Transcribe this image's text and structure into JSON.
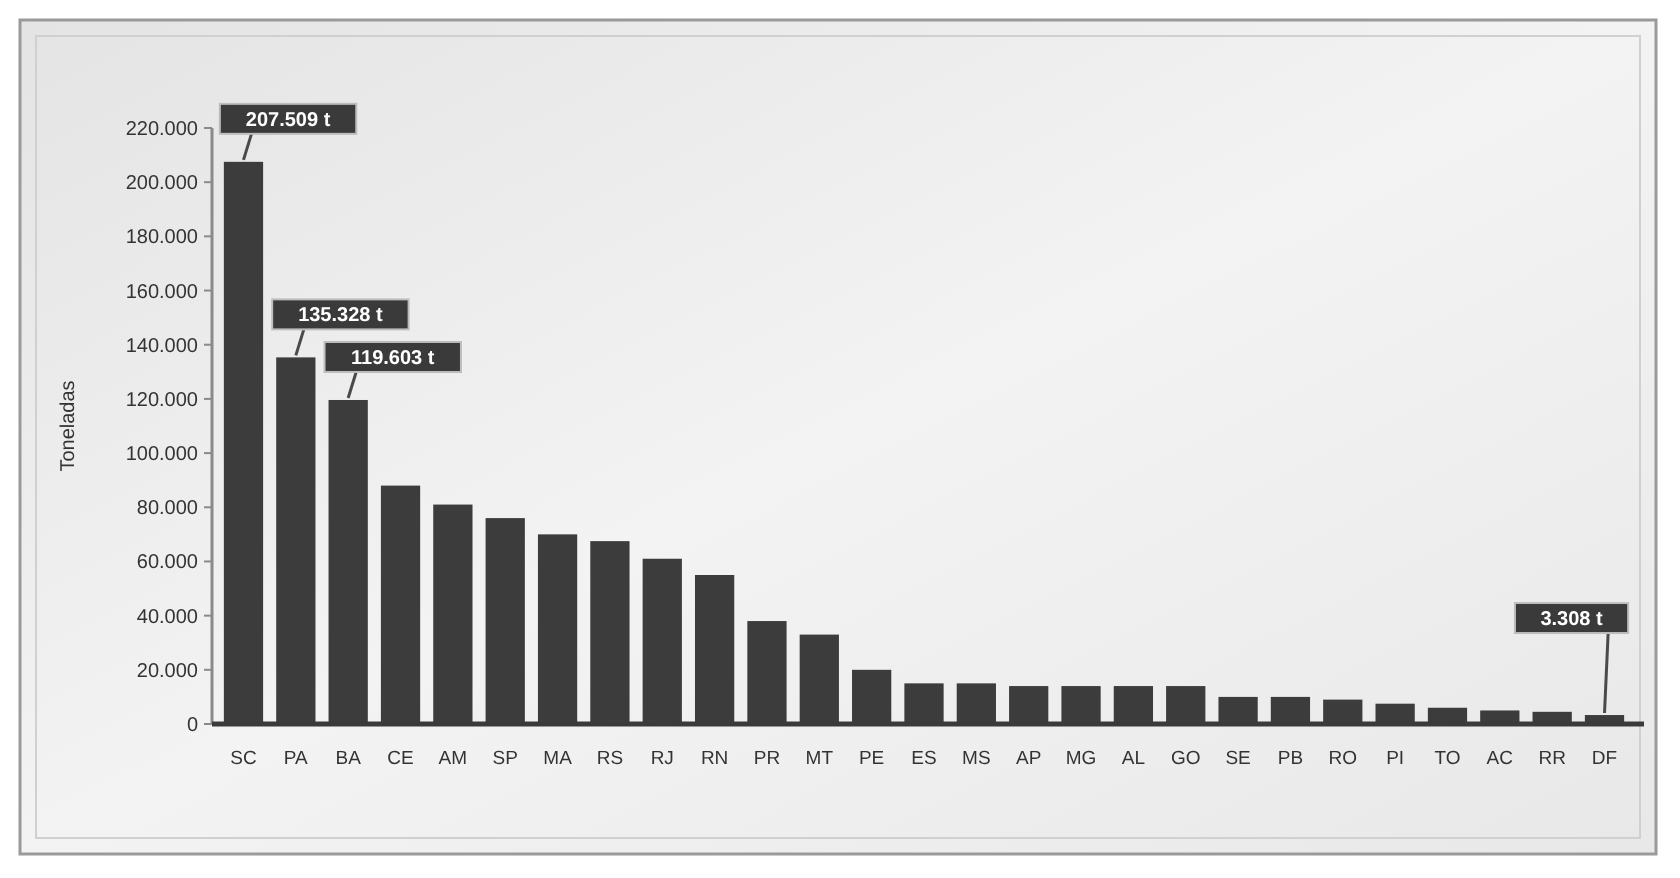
{
  "chart_data": {
    "type": "bar",
    "ylabel": "Toneladas",
    "categories": [
      "SC",
      "PA",
      "BA",
      "CE",
      "AM",
      "SP",
      "MA",
      "RS",
      "RJ",
      "RN",
      "PR",
      "MT",
      "PE",
      "ES",
      "MS",
      "AP",
      "MG",
      "AL",
      "GO",
      "SE",
      "PB",
      "RO",
      "PI",
      "TO",
      "AC",
      "RR",
      "DF"
    ],
    "values": [
      207509,
      135328,
      119603,
      88000,
      81000,
      76000,
      70000,
      67500,
      61000,
      55000,
      38000,
      33000,
      20000,
      15000,
      15000,
      14000,
      14000,
      14000,
      14000,
      10000,
      10000,
      9000,
      7500,
      6000,
      5000,
      4500,
      3308
    ],
    "value_labels": [
      "207.509 t",
      "135.328 t",
      "119.603 t",
      null,
      null,
      null,
      null,
      null,
      null,
      null,
      null,
      null,
      null,
      null,
      null,
      null,
      null,
      null,
      null,
      null,
      null,
      null,
      null,
      null,
      null,
      null,
      "3.308 t"
    ],
    "color": "#3c3c3c",
    "ylim": [
      0,
      220000
    ],
    "yticks": [
      0,
      {
        "value": 20000,
        "label": "20.000"
      },
      {
        "value": 40000,
        "label": "40.000"
      },
      {
        "value": 60000,
        "label": "60.000"
      },
      {
        "value": 80000,
        "label": "80.000"
      },
      {
        "value": 100000,
        "label": "100.000"
      },
      {
        "value": 120000,
        "label": "120.000"
      },
      {
        "value": 140000,
        "label": "140.000"
      },
      {
        "value": 160000,
        "label": "160.000"
      },
      {
        "value": 180000,
        "label": "180.000"
      },
      {
        "value": 200000,
        "label": "200.000"
      },
      {
        "value": 220000,
        "label": "220.000"
      }
    ]
  }
}
